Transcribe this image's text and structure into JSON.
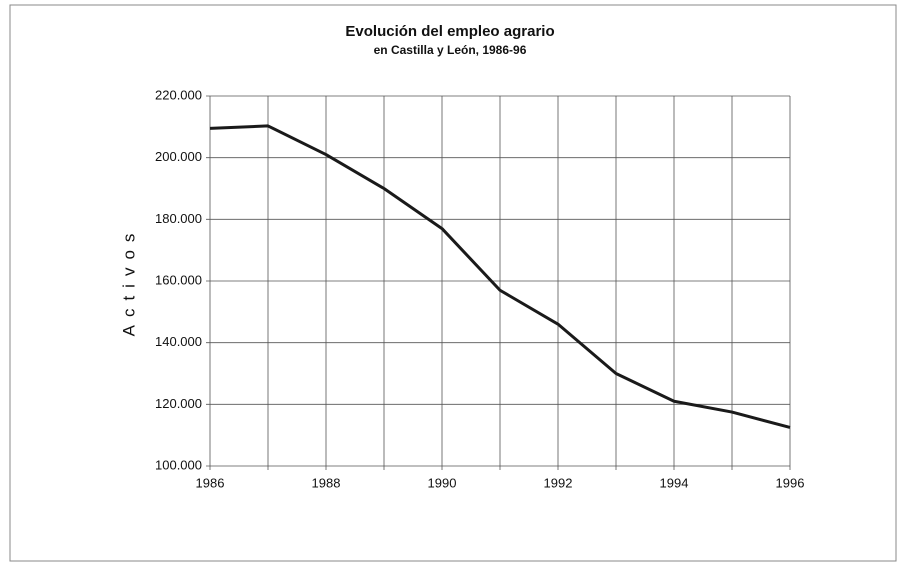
{
  "chart_data": {
    "type": "line",
    "title": "Evolución del empleo agrario",
    "subtitle": "en Castilla y León, 1986-96",
    "y_label": "Activos",
    "x": [
      1986,
      1987,
      1988,
      1989,
      1990,
      1991,
      1992,
      1993,
      1994,
      1995,
      1996
    ],
    "series": [
      {
        "color": "#1a1a1a",
        "values": [
          209500,
          210300,
          201000,
          190000,
          177000,
          157000,
          146000,
          130000,
          121000,
          117500,
          112500
        ]
      }
    ],
    "xlim": [
      1986,
      1996
    ],
    "xticks": [
      1986,
      1988,
      1990,
      1992,
      1994,
      1996
    ],
    "xminor_grid": [
      1987,
      1989,
      1991,
      1993,
      1995
    ],
    "ylim": [
      100000,
      220000
    ],
    "yticks": [
      {
        "value": 100000,
        "label": "100.000"
      },
      {
        "value": 120000,
        "label": "120.000"
      },
      {
        "value": 140000,
        "label": "140.000"
      },
      {
        "value": 160000,
        "label": "160.000"
      },
      {
        "value": 180000,
        "label": "180.000"
      },
      {
        "value": 200000,
        "label": "200.000"
      },
      {
        "value": 220000,
        "label": "220.000"
      }
    ],
    "grid": true
  }
}
